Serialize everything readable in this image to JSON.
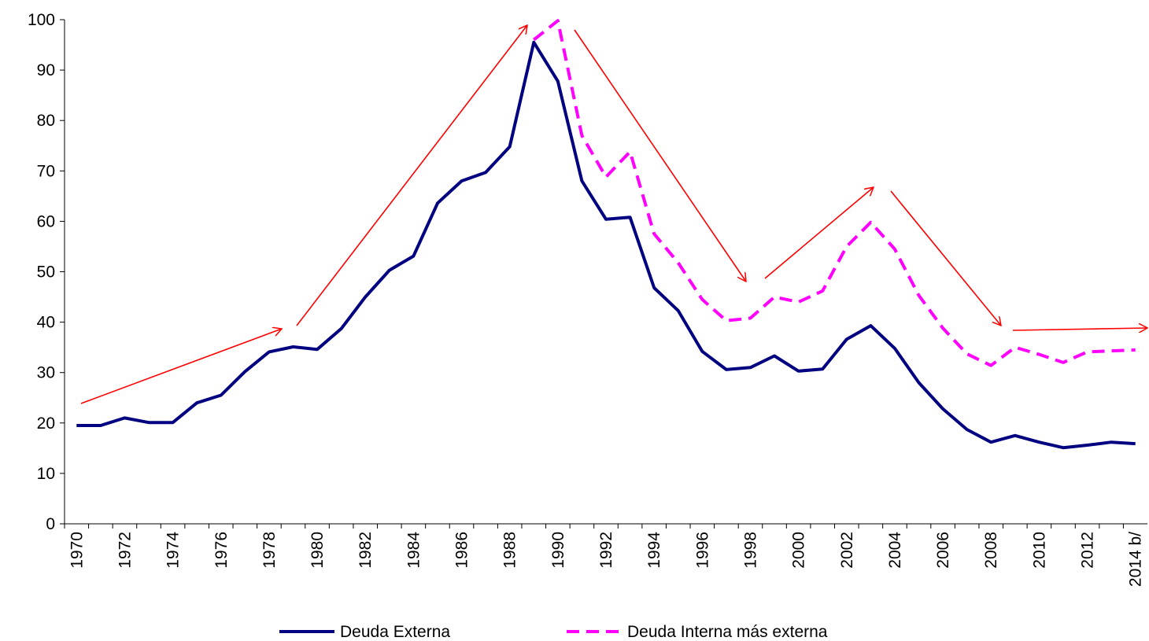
{
  "chart_data": {
    "type": "line",
    "categories": [
      "1970",
      null,
      "1972",
      null,
      "1974",
      null,
      "1976",
      null,
      "1978",
      null,
      "1980",
      null,
      "1982",
      null,
      "1984",
      null,
      "1986",
      null,
      "1988",
      null,
      "1990",
      null,
      "1992",
      null,
      "1994",
      null,
      "1996",
      null,
      "1998",
      null,
      "2000",
      null,
      "2002",
      null,
      "2004",
      null,
      "2006",
      null,
      "2008",
      null,
      "2010",
      null,
      "2012",
      null,
      "2014 b/"
    ],
    "series": [
      {
        "name": "Deuda Externa",
        "color": "#000080",
        "dash": false,
        "values": [
          19.5,
          19.5,
          21,
          20.1,
          20.1,
          24,
          25.5,
          30.2,
          34.1,
          35.1,
          34.6,
          38.7,
          45,
          50.3,
          53.1,
          63.6,
          68,
          69.7,
          74.8,
          95.5,
          87.8,
          68,
          60.4,
          60.8,
          46.8,
          42.3,
          34.2,
          30.6,
          31,
          33.3,
          30.3,
          30.7,
          36.6,
          39.3,
          34.8,
          28,
          22.8,
          18.7,
          16.2,
          17.5,
          16.2,
          15.1,
          15.6,
          16.2,
          15.9
        ]
      },
      {
        "name": "Deuda Interna más externa",
        "color": "#ff00ff",
        "dash": true,
        "values": [
          null,
          null,
          null,
          null,
          null,
          null,
          null,
          null,
          null,
          null,
          null,
          null,
          null,
          null,
          null,
          null,
          null,
          null,
          null,
          96,
          99.8,
          77,
          68.8,
          73.8,
          57.5,
          51.8,
          44.5,
          40.3,
          40.8,
          45,
          44,
          46.2,
          55,
          59.8,
          54.5,
          45.3,
          38.8,
          33.7,
          31.4,
          35,
          33.6,
          32,
          34.1,
          34.3,
          34.5
        ]
      }
    ],
    "ylim": [
      0,
      100
    ],
    "yticks": [
      0,
      10,
      20,
      30,
      40,
      50,
      60,
      70,
      80,
      90,
      100
    ],
    "grid": false
  }
}
